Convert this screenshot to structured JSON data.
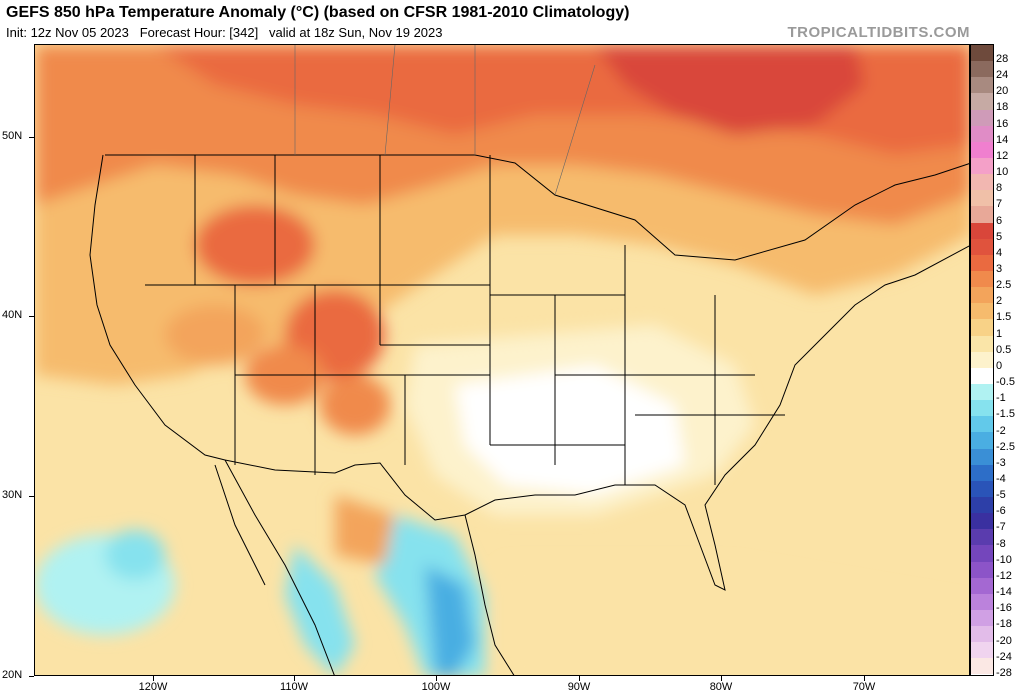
{
  "header": {
    "title": "GEFS 850 hPa Temperature Anomaly (°C) (based on CFSR 1981-2010 Climatology)",
    "init": "Init: 12z Nov 05 2023",
    "forecast_hour": "Forecast Hour: [342]",
    "valid": "valid at 18z Sun, Nov 19 2023",
    "watermark": "TROPICALTIDBITS.COM"
  },
  "axes": {
    "lat_labels": [
      "50N",
      "40N",
      "30N",
      "20N"
    ],
    "lon_labels": [
      "120W",
      "110W",
      "100W",
      "90W",
      "80W",
      "70W"
    ]
  },
  "colorbar": {
    "labels": [
      "28",
      "24",
      "20",
      "18",
      "16",
      "14",
      "12",
      "10",
      "8",
      "7",
      "6",
      "5",
      "4",
      "3",
      "2.5",
      "2",
      "1.5",
      "1",
      "0.5",
      "0",
      "-0.5",
      "-1",
      "-1.5",
      "-2",
      "-2.5",
      "-3",
      "-4",
      "-5",
      "-6",
      "-7",
      "-8",
      "-10",
      "-12",
      "-14",
      "-16",
      "-18",
      "-20",
      "-24",
      "-28"
    ],
    "colors": [
      "#6e4a3c",
      "#8b6a5e",
      "#a88a80",
      "#c6aaa4",
      "#cf9bb8",
      "#e08cc6",
      "#f07fcf",
      "#f4a0c8",
      "#f2b7b1",
      "#f0c0a8",
      "#e8a898",
      "#d9463a",
      "#e0533d",
      "#ea6a40",
      "#f08a4c",
      "#f3a45b",
      "#f6bb6d",
      "#f8d287",
      "#fae5a8",
      "#fdf2cc",
      "#ffffff",
      "#b0f2f2",
      "#86e2ee",
      "#62c9ea",
      "#4aaee2",
      "#3a8fd6",
      "#2d6ec8",
      "#2a54b8",
      "#2d3fa8",
      "#3a30a0",
      "#5a3cae",
      "#7446bc",
      "#8c54c8",
      "#a468d2",
      "#bb82dc",
      "#d0a0e4",
      "#e2bce9",
      "#f0d4ef",
      "#fbe8e4"
    ]
  }
}
